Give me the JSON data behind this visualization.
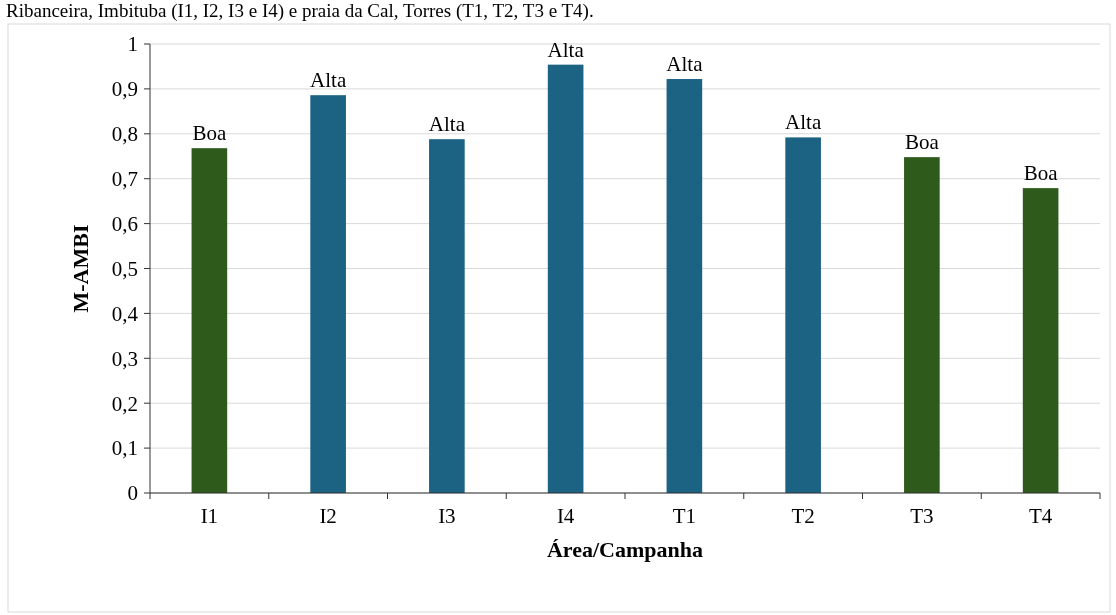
{
  "chart_data": {
    "type": "bar",
    "annotations": [
      "Ribanceira, Imbituba (I1, I2, I3 e I4) e praia da Cal, Torres (T1, T2, T3 e T4)."
    ],
    "xlabel": "Área/Campanha",
    "ylabel": "M-AMBI",
    "categories": [
      "I1",
      "I2",
      "I3",
      "I4",
      "T1",
      "T2",
      "T3",
      "T4"
    ],
    "values": [
      0.768,
      0.886,
      0.788,
      0.954,
      0.922,
      0.792,
      0.748,
      0.679
    ],
    "colors": [
      "#2e5a1c",
      "#1b6283",
      "#1b6283",
      "#1b6283",
      "#1b6283",
      "#1b6283",
      "#2e5a1c",
      "#2e5a1c"
    ],
    "value_labels": [
      "Boa",
      "Alta",
      "Alta",
      "Alta",
      "Alta",
      "Alta",
      "Boa",
      "Boa"
    ],
    "ylim": [
      0,
      1
    ],
    "yticks": [
      {
        "value": 0,
        "label": "0"
      },
      {
        "value": 0.1,
        "label": "0,1"
      },
      {
        "value": 0.2,
        "label": "0,2"
      },
      {
        "value": 0.3,
        "label": "0,3"
      },
      {
        "value": 0.4,
        "label": "0,4"
      },
      {
        "value": 0.5,
        "label": "0,5"
      },
      {
        "value": 0.6,
        "label": "0,6"
      },
      {
        "value": 0.7,
        "label": "0,7"
      },
      {
        "value": 0.8,
        "label": "0,8"
      },
      {
        "value": 0.9,
        "label": "0,9"
      },
      {
        "value": 1,
        "label": "1"
      }
    ],
    "grid": "y"
  }
}
